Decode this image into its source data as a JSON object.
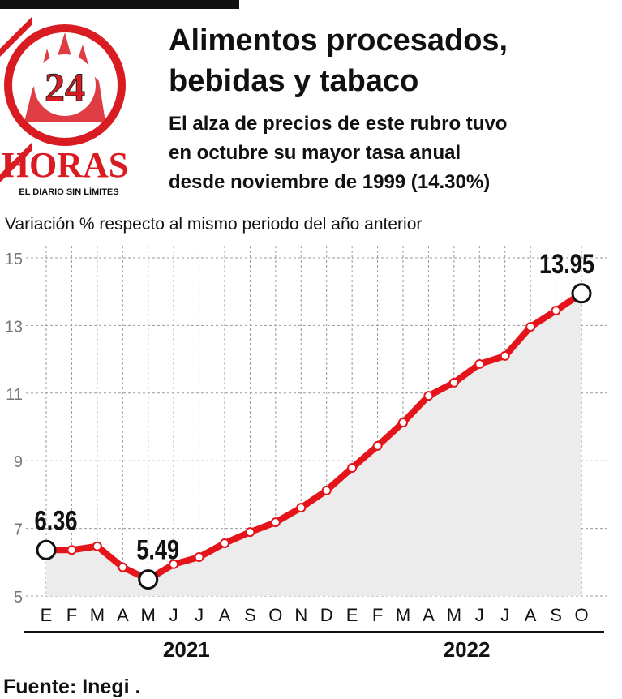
{
  "logo": {
    "number": "24",
    "name": "HORAS",
    "tagline": "EL DIARIO SIN LÍMITES"
  },
  "chart_data": {
    "type": "line",
    "title_lines": [
      "Alimentos procesados,",
      "bebidas y tabaco"
    ],
    "subtitle_lines": [
      "El alza de precios de este rubro tuvo",
      "en octubre su mayor tasa anual",
      "desde noviembre de 1999 (14.30%)"
    ],
    "y_label": "Variación % respecto al mismo periodo del año anterior",
    "categories": [
      "E",
      "F",
      "M",
      "A",
      "M",
      "J",
      "J",
      "A",
      "S",
      "O",
      "N",
      "D",
      "E",
      "F",
      "M",
      "A",
      "M",
      "J",
      "J",
      "A",
      "S",
      "O"
    ],
    "x_groups": [
      {
        "label": "2021",
        "span": [
          0,
          11
        ]
      },
      {
        "label": "2022",
        "span": [
          12,
          21
        ]
      }
    ],
    "values": [
      6.36,
      6.36,
      6.47,
      5.85,
      5.49,
      5.94,
      6.15,
      6.56,
      6.89,
      7.18,
      7.61,
      8.12,
      8.79,
      9.44,
      10.13,
      10.92,
      11.31,
      11.86,
      12.1,
      12.96,
      13.44,
      13.95
    ],
    "value_labels": [
      "6.36",
      null,
      null,
      null,
      "5.49",
      null,
      null,
      null,
      null,
      null,
      null,
      null,
      null,
      null,
      null,
      null,
      null,
      null,
      null,
      null,
      null,
      "13.95"
    ],
    "color": "#e5141b",
    "area_color": "#ececec",
    "ylim": [
      5,
      15
    ],
    "yticks": [
      5,
      7,
      9,
      11,
      13,
      15
    ],
    "grid": true,
    "source": "Fuente: Inegi ."
  }
}
